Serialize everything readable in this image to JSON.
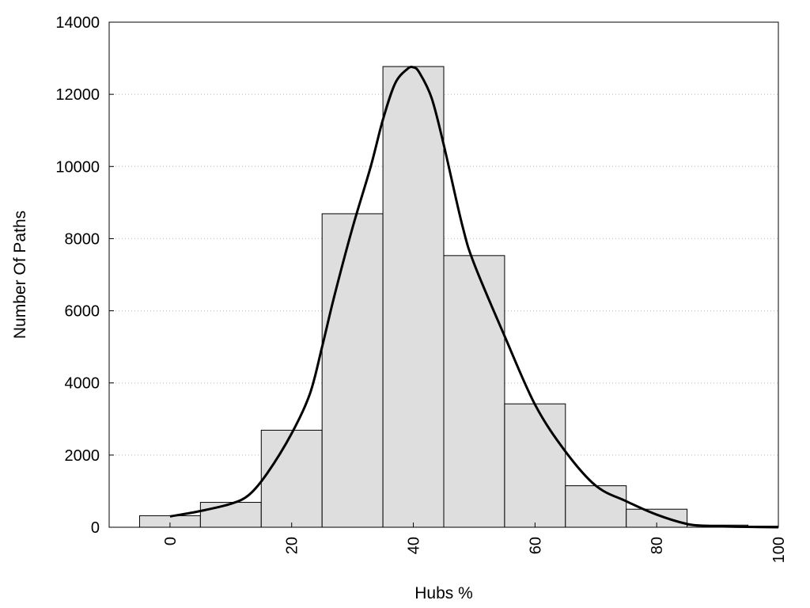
{
  "chart_data": {
    "type": "bar",
    "title": "",
    "xlabel": "Hubs %",
    "ylabel": "Number Of Paths",
    "xlim": [
      -10,
      100
    ],
    "ylim": [
      0,
      14000
    ],
    "bin_width": 10,
    "x_ticks": [
      0,
      20,
      40,
      60,
      80,
      100
    ],
    "y_ticks": [
      0,
      2000,
      4000,
      6000,
      8000,
      10000,
      12000,
      14000
    ],
    "grid": "horizontal dotted",
    "colors": {
      "bar_fill": "#dedede",
      "bar_stroke": "#000000",
      "curve": "#000000",
      "grid": "#bbbbbb"
    },
    "series": [
      {
        "type": "bar",
        "centers": [
          0,
          10,
          20,
          30,
          40,
          50,
          60,
          70,
          80,
          90,
          100
        ],
        "values": [
          320,
          690,
          2690,
          8690,
          12770,
          7530,
          3420,
          1150,
          500,
          60,
          30
        ]
      },
      {
        "type": "line",
        "x": [
          0,
          5,
          10,
          13,
          16,
          20,
          23,
          25,
          27,
          30,
          33,
          35,
          37,
          39,
          40,
          41,
          43,
          45,
          48,
          50,
          55,
          60,
          65,
          70,
          75,
          80,
          85,
          88,
          90,
          95,
          100
        ],
        "y": [
          300,
          450,
          650,
          900,
          1500,
          2600,
          3700,
          5000,
          6400,
          8300,
          10000,
          11300,
          12300,
          12700,
          12750,
          12600,
          11900,
          10600,
          8400,
          7300,
          5300,
          3400,
          2100,
          1150,
          720,
          350,
          90,
          40,
          25,
          10,
          0
        ]
      }
    ]
  }
}
